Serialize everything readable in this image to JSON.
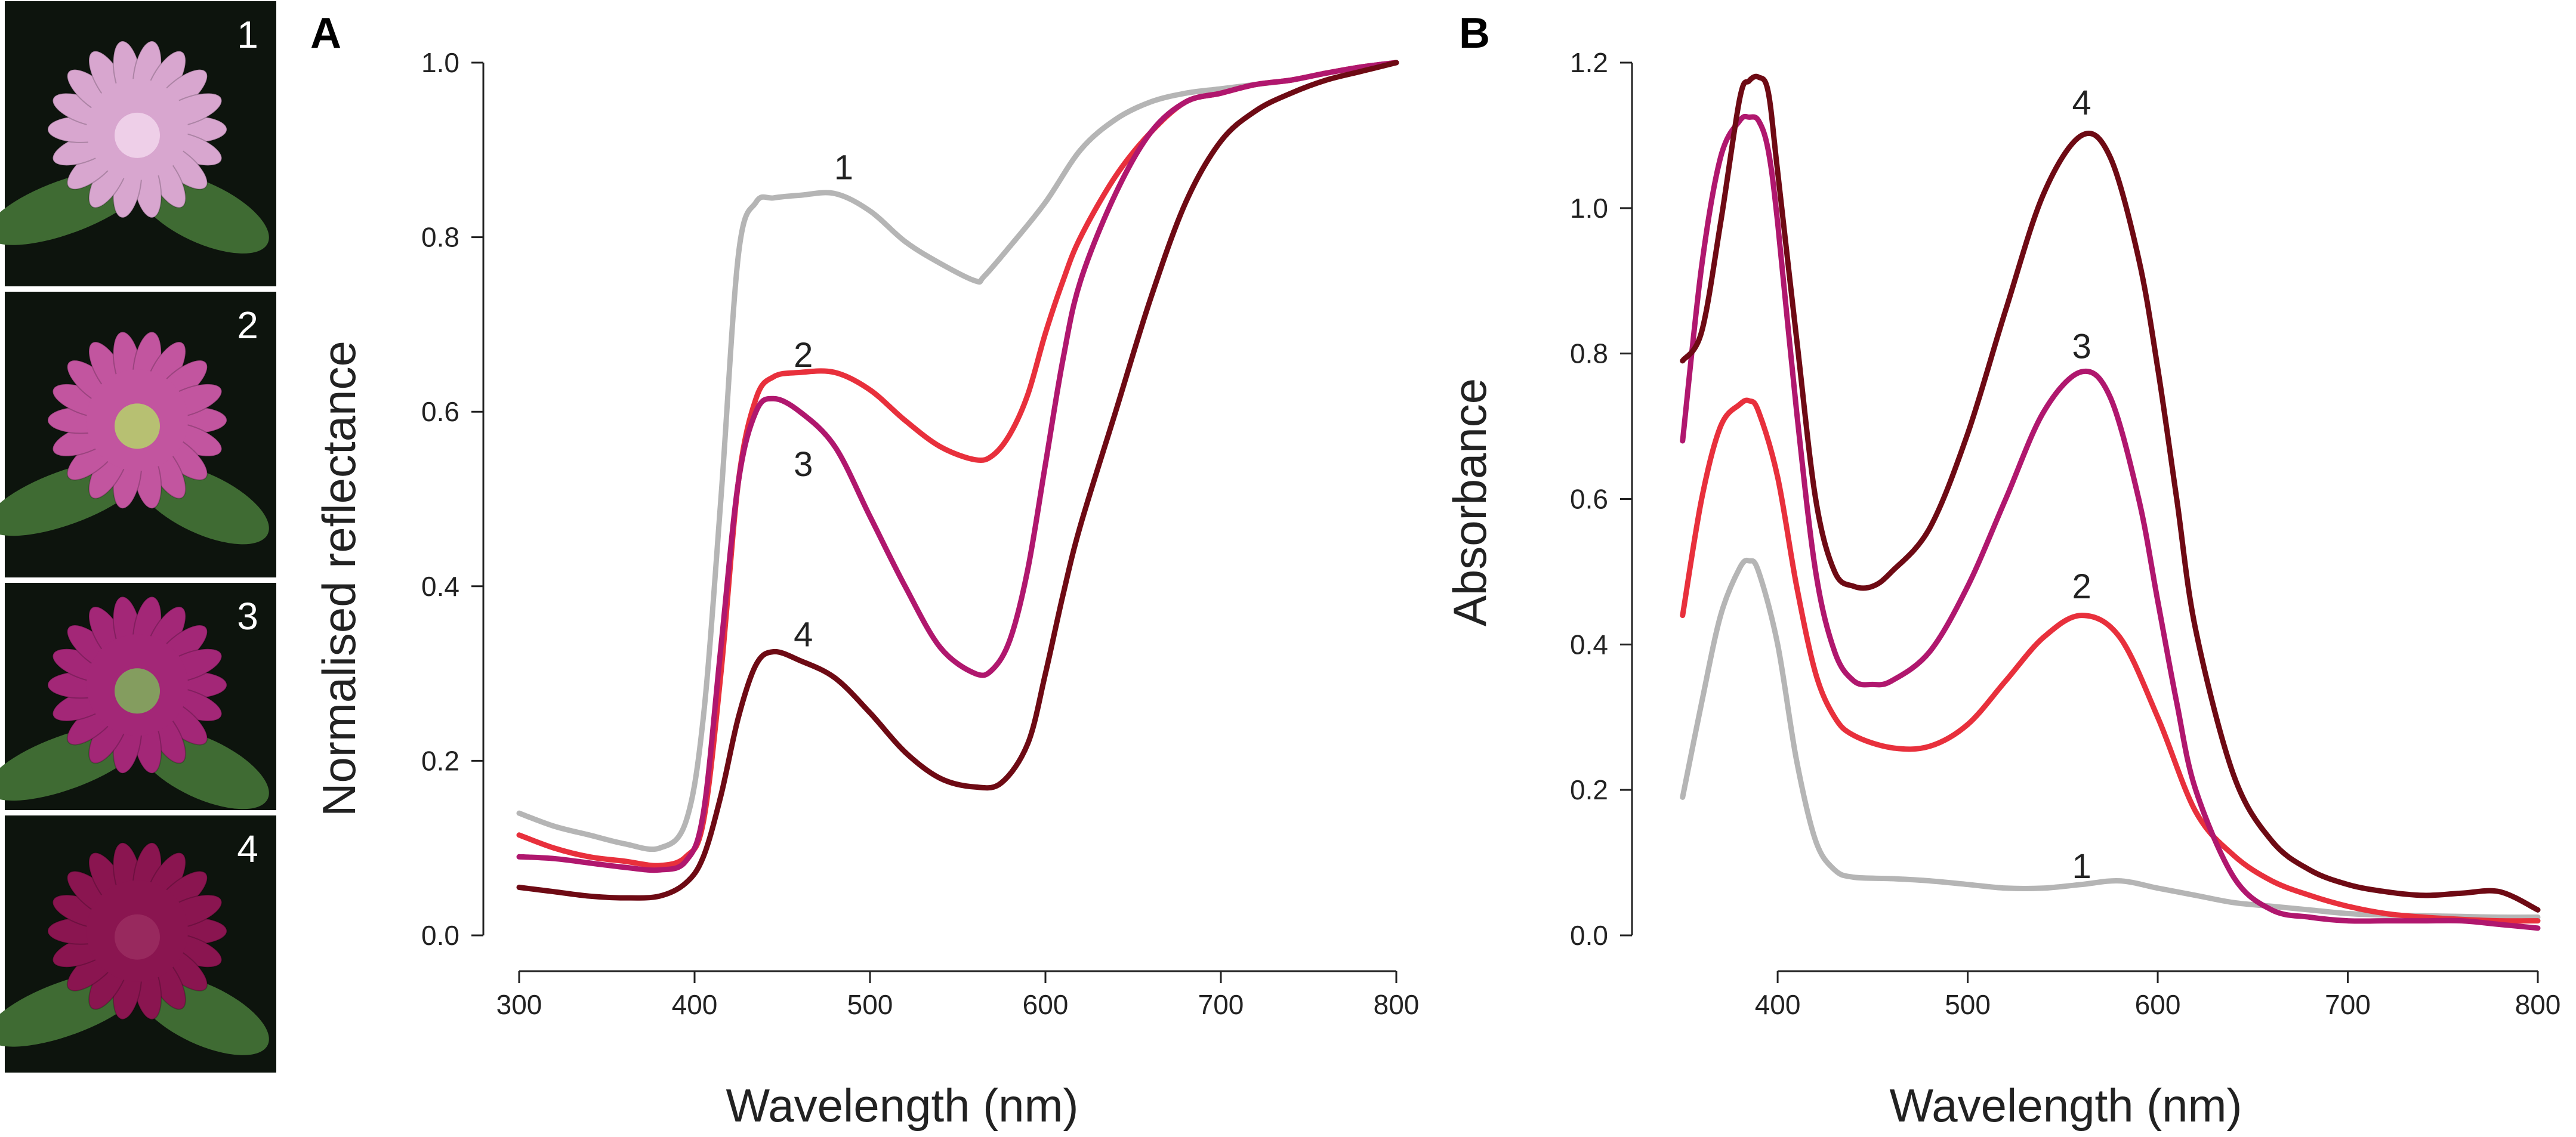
{
  "figure": {
    "photos": [
      {
        "label": "1",
        "flower_color": "#d8a6cf",
        "center_color": "#f2d6ec"
      },
      {
        "label": "2",
        "flower_color": "#c2559f",
        "center_color": "#b5d36a"
      },
      {
        "label": "3",
        "flower_color": "#a32777",
        "center_color": "#7fb35a"
      },
      {
        "label": "4",
        "flower_color": "#8a1550",
        "center_color": "#9a2d60"
      }
    ],
    "background_color": "#0d140d",
    "leaf_color": "#3f6b33"
  },
  "chart_data": [
    {
      "panel": "A",
      "type": "line",
      "title": "",
      "xlabel": "Wavelength (nm)",
      "ylabel": "Normalised reflectance",
      "xlim": [
        300,
        800
      ],
      "ylim": [
        0.0,
        1.0
      ],
      "xticks": [
        "300",
        "400",
        "500",
        "600",
        "700",
        "800"
      ],
      "yticks": [
        "0.0",
        "0.2",
        "0.4",
        "0.6",
        "0.8",
        "1.0"
      ],
      "grid": false,
      "series": [
        {
          "name": "1",
          "color": "#b5b5b5",
          "label_at": [
            485,
            0.88
          ],
          "x": [
            300,
            320,
            340,
            360,
            380,
            395,
            405,
            415,
            425,
            435,
            445,
            460,
            480,
            500,
            520,
            540,
            560,
            565,
            580,
            600,
            620,
            640,
            660,
            680,
            700,
            720,
            740,
            760,
            780,
            800
          ],
          "y": [
            0.14,
            0.125,
            0.115,
            0.105,
            0.1,
            0.13,
            0.25,
            0.5,
            0.78,
            0.84,
            0.845,
            0.848,
            0.85,
            0.83,
            0.795,
            0.77,
            0.75,
            0.755,
            0.79,
            0.84,
            0.9,
            0.935,
            0.955,
            0.965,
            0.97,
            0.975,
            0.98,
            0.988,
            0.995,
            1.0
          ]
        },
        {
          "name": "2",
          "color": "#e8303c",
          "label_at": [
            462,
            0.665
          ],
          "x": [
            300,
            320,
            340,
            360,
            380,
            395,
            405,
            415,
            425,
            435,
            445,
            460,
            480,
            500,
            520,
            540,
            560,
            570,
            580,
            590,
            600,
            610,
            620,
            640,
            660,
            680,
            700,
            720,
            740,
            760,
            780,
            800
          ],
          "y": [
            0.115,
            0.1,
            0.09,
            0.085,
            0.08,
            0.09,
            0.13,
            0.3,
            0.52,
            0.615,
            0.64,
            0.645,
            0.645,
            0.625,
            0.59,
            0.56,
            0.545,
            0.55,
            0.575,
            0.62,
            0.69,
            0.75,
            0.8,
            0.87,
            0.92,
            0.955,
            0.965,
            0.975,
            0.98,
            0.988,
            0.995,
            1.0
          ]
        },
        {
          "name": "3",
          "color": "#b0176e",
          "label_at": [
            462,
            0.54
          ],
          "x": [
            300,
            320,
            340,
            360,
            380,
            395,
            405,
            415,
            425,
            435,
            445,
            460,
            480,
            500,
            520,
            540,
            560,
            570,
            580,
            590,
            600,
            610,
            620,
            640,
            660,
            680,
            700,
            720,
            740,
            760,
            780,
            800
          ],
          "y": [
            0.09,
            0.088,
            0.083,
            0.078,
            0.075,
            0.085,
            0.14,
            0.33,
            0.52,
            0.6,
            0.615,
            0.6,
            0.56,
            0.48,
            0.4,
            0.33,
            0.3,
            0.305,
            0.34,
            0.42,
            0.54,
            0.66,
            0.75,
            0.85,
            0.92,
            0.955,
            0.965,
            0.975,
            0.98,
            0.988,
            0.995,
            1.0
          ]
        },
        {
          "name": "4",
          "color": "#6e0a14",
          "label_at": [
            462,
            0.345
          ],
          "x": [
            300,
            320,
            340,
            360,
            380,
            395,
            405,
            415,
            425,
            435,
            445,
            460,
            480,
            500,
            520,
            540,
            560,
            575,
            590,
            600,
            610,
            620,
            640,
            660,
            680,
            700,
            720,
            740,
            760,
            780,
            800
          ],
          "y": [
            0.055,
            0.05,
            0.045,
            0.043,
            0.045,
            0.06,
            0.09,
            0.16,
            0.25,
            0.31,
            0.325,
            0.315,
            0.295,
            0.255,
            0.21,
            0.18,
            0.17,
            0.175,
            0.22,
            0.3,
            0.39,
            0.47,
            0.6,
            0.73,
            0.84,
            0.91,
            0.945,
            0.965,
            0.98,
            0.99,
            1.0
          ]
        }
      ]
    },
    {
      "panel": "B",
      "type": "line",
      "title": "",
      "xlabel": "Wavelength (nm)",
      "ylabel": "Absorbance",
      "xlim": [
        340,
        800
      ],
      "ylim": [
        0.0,
        1.2
      ],
      "xticks": [
        "400",
        "500",
        "600",
        "700",
        "800"
      ],
      "yticks": [
        "0.0",
        "0.2",
        "0.4",
        "0.6",
        "0.8",
        "1.0",
        "1.2"
      ],
      "grid": false,
      "series": [
        {
          "name": "1",
          "color": "#b5b5b5",
          "label_at": [
            560,
            0.095
          ],
          "x": [
            350,
            360,
            370,
            380,
            385,
            390,
            400,
            410,
            420,
            430,
            440,
            460,
            480,
            500,
            520,
            540,
            560,
            580,
            600,
            620,
            640,
            660,
            680,
            700,
            720,
            740,
            760,
            780,
            800
          ],
          "y": [
            0.19,
            0.32,
            0.44,
            0.505,
            0.515,
            0.5,
            0.4,
            0.24,
            0.13,
            0.09,
            0.08,
            0.078,
            0.075,
            0.07,
            0.065,
            0.065,
            0.07,
            0.075,
            0.065,
            0.055,
            0.045,
            0.04,
            0.035,
            0.03,
            0.028,
            0.027,
            0.026,
            0.025,
            0.025
          ]
        },
        {
          "name": "2",
          "color": "#e8303c",
          "label_at": [
            560,
            0.48
          ],
          "x": [
            350,
            360,
            370,
            380,
            385,
            390,
            400,
            410,
            420,
            430,
            440,
            460,
            480,
            500,
            520,
            540,
            560,
            580,
            600,
            620,
            640,
            660,
            680,
            700,
            720,
            740,
            760,
            780,
            800
          ],
          "y": [
            0.44,
            0.6,
            0.7,
            0.73,
            0.735,
            0.72,
            0.63,
            0.48,
            0.36,
            0.3,
            0.275,
            0.258,
            0.26,
            0.29,
            0.35,
            0.41,
            0.44,
            0.41,
            0.3,
            0.17,
            0.11,
            0.075,
            0.055,
            0.04,
            0.03,
            0.025,
            0.022,
            0.02,
            0.02
          ]
        },
        {
          "name": "3",
          "color": "#b0176e",
          "label_at": [
            560,
            0.81
          ],
          "x": [
            350,
            360,
            370,
            380,
            385,
            390,
            395,
            400,
            410,
            420,
            430,
            440,
            450,
            460,
            480,
            500,
            520,
            540,
            560,
            575,
            590,
            600,
            610,
            620,
            640,
            660,
            680,
            700,
            720,
            740,
            760,
            780,
            800
          ],
          "y": [
            0.68,
            0.92,
            1.07,
            1.12,
            1.125,
            1.12,
            1.08,
            0.98,
            0.72,
            0.5,
            0.39,
            0.35,
            0.345,
            0.35,
            0.39,
            0.48,
            0.6,
            0.72,
            0.775,
            0.74,
            0.6,
            0.46,
            0.32,
            0.2,
            0.08,
            0.035,
            0.025,
            0.02,
            0.02,
            0.02,
            0.02,
            0.015,
            0.01
          ]
        },
        {
          "name": "4",
          "color": "#6e0a14",
          "label_at": [
            560,
            1.145
          ],
          "x": [
            350,
            360,
            370,
            380,
            385,
            390,
            395,
            400,
            410,
            420,
            430,
            440,
            450,
            460,
            480,
            500,
            520,
            540,
            560,
            575,
            590,
            600,
            610,
            620,
            640,
            660,
            680,
            700,
            720,
            740,
            760,
            780,
            800
          ],
          "y": [
            0.79,
            0.83,
            0.98,
            1.15,
            1.175,
            1.18,
            1.16,
            1.05,
            0.82,
            0.6,
            0.5,
            0.48,
            0.48,
            0.5,
            0.56,
            0.69,
            0.86,
            1.02,
            1.1,
            1.07,
            0.93,
            0.78,
            0.6,
            0.42,
            0.22,
            0.13,
            0.09,
            0.07,
            0.06,
            0.055,
            0.058,
            0.06,
            0.035
          ]
        }
      ]
    }
  ]
}
